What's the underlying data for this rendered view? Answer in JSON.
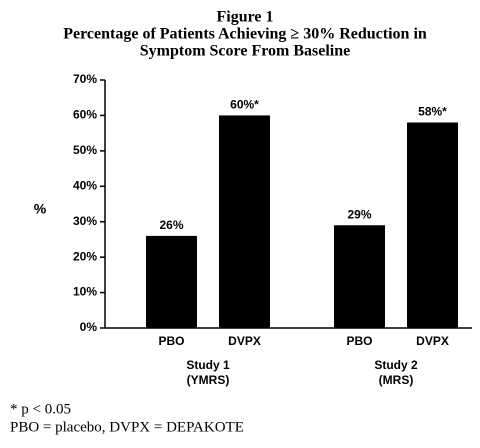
{
  "chart_data": {
    "type": "bar",
    "title": [
      "Figure 1",
      "Percentage of Patients Achieving ≥ 30% Reduction in",
      "Symptom Score From Baseline"
    ],
    "ylabel": "%",
    "groups": [
      {
        "name": "Study 1",
        "subname": "(YMRS)",
        "categories": [
          "PBO",
          "DVPX"
        ],
        "values": [
          26,
          60
        ],
        "value_labels": [
          "26%",
          "60%*"
        ]
      },
      {
        "name": "Study 2",
        "subname": "(MRS)",
        "categories": [
          "PBO",
          "DVPX"
        ],
        "values": [
          29,
          58
        ],
        "value_labels": [
          "29%",
          "58%*"
        ]
      }
    ],
    "color": "#000000",
    "ylim": [
      0,
      70
    ],
    "yticks": [
      {
        "value": 0,
        "label": "0%"
      },
      {
        "value": 10,
        "label": "10%"
      },
      {
        "value": 20,
        "label": "20%"
      },
      {
        "value": 30,
        "label": "30%"
      },
      {
        "value": 40,
        "label": "40%"
      },
      {
        "value": 50,
        "label": "50%"
      },
      {
        "value": 60,
        "label": "60%"
      },
      {
        "value": 70,
        "label": "70%"
      }
    ],
    "footnotes": [
      "* p < 0.05",
      "PBO = placebo, DVPX = DEPAKOTE"
    ]
  }
}
